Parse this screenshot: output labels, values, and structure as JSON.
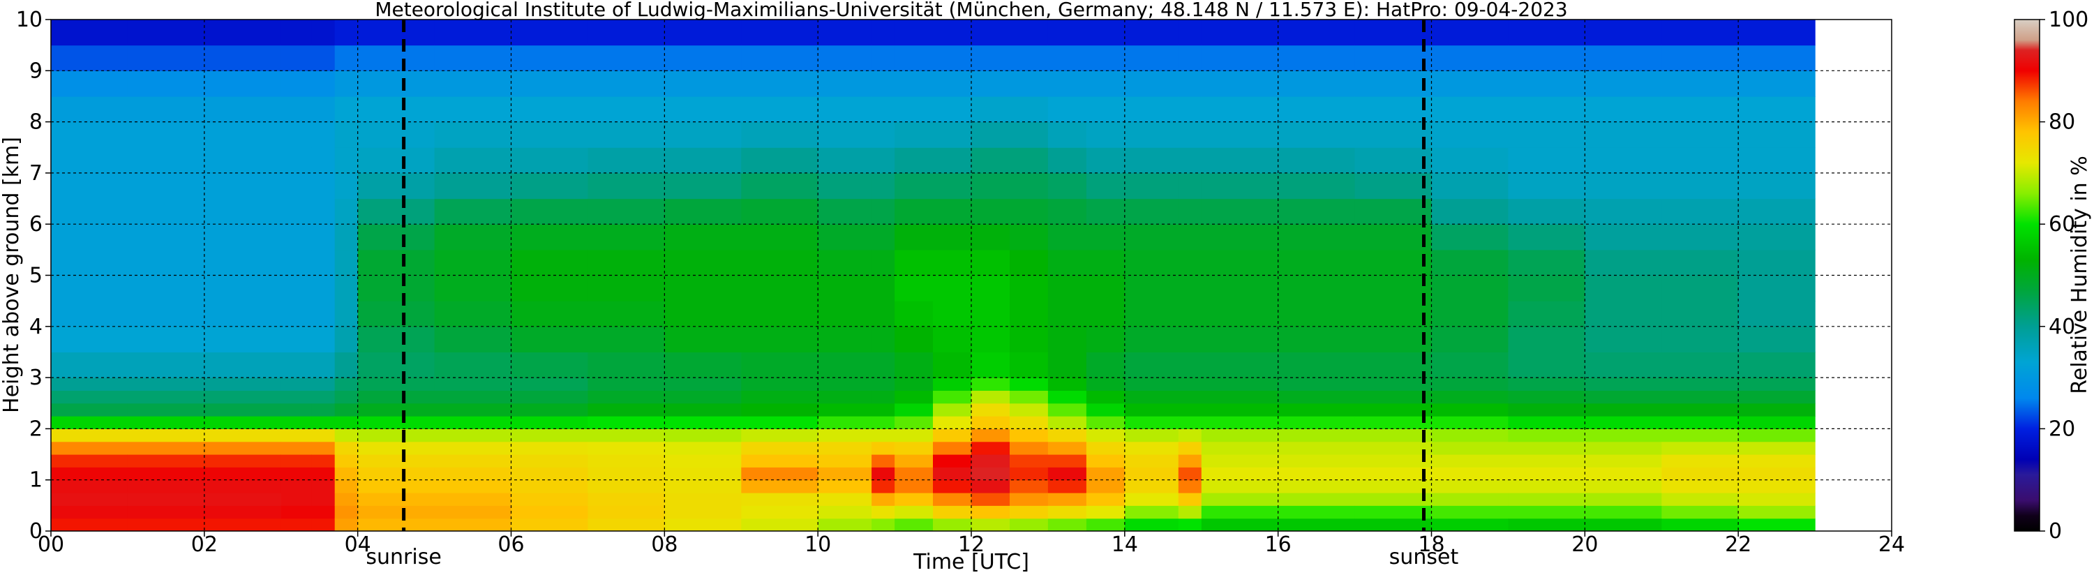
{
  "chart_data": {
    "type": "heatmap",
    "title": "Meteorological Institute of Ludwig-Maximilians-Universität (München, Germany; 48.148 N / 11.573 E):    HatPro: 09-04-2023",
    "xlabel": "Time [UTC]",
    "ylabel": "Height above ground [km]",
    "xlim": [
      0,
      24
    ],
    "ylim": [
      0,
      10
    ],
    "data_x_range": [
      0,
      23
    ],
    "x_ticks": [
      "00",
      "02",
      "04",
      "06",
      "08",
      "10",
      "12",
      "14",
      "16",
      "18",
      "20",
      "22",
      "24"
    ],
    "x_tick_values": [
      0,
      2,
      4,
      6,
      8,
      10,
      12,
      14,
      16,
      18,
      20,
      22,
      24
    ],
    "y_ticks": [
      "0",
      "1",
      "2",
      "3",
      "4",
      "5",
      "6",
      "7",
      "8",
      "9",
      "10"
    ],
    "y_tick_values": [
      0,
      1,
      2,
      3,
      4,
      5,
      6,
      7,
      8,
      9,
      10
    ],
    "grid": true,
    "events": [
      {
        "name": "sunrise",
        "x": 4.6
      },
      {
        "name": "sunset",
        "x": 17.9
      }
    ],
    "colorbar": {
      "label": "Relative Humidity in %",
      "range": [
        0,
        100
      ],
      "ticks": [
        "0",
        "20",
        "40",
        "60",
        "80",
        "100"
      ],
      "tick_values": [
        0,
        20,
        40,
        60,
        80,
        100
      ]
    },
    "time_hours": [
      0,
      1,
      2,
      3,
      3.4,
      3.7,
      4,
      5,
      6,
      7,
      8,
      9,
      10,
      10.7,
      11,
      11.5,
      12,
      12.5,
      13,
      13.5,
      14,
      14.7,
      15,
      16,
      17,
      18,
      19,
      20,
      21,
      22,
      23
    ],
    "heights_km": [
      0,
      0.25,
      0.5,
      0.75,
      1,
      1.25,
      1.5,
      1.75,
      2,
      2.25,
      2.5,
      2.75,
      3,
      3.5,
      4,
      4.5,
      5,
      5.5,
      6,
      6.5,
      7,
      7.5,
      8,
      8.5,
      9,
      9.5,
      10
    ],
    "profiles_rh": [
      [
        88,
        90,
        92,
        92,
        91,
        90,
        86,
        80,
        68,
        48,
        44,
        42,
        38,
        34,
        32,
        32,
        32,
        32,
        32,
        32,
        32,
        32,
        32,
        30,
        26,
        20,
        15
      ],
      [
        88,
        90,
        92,
        92,
        91,
        90,
        86,
        80,
        68,
        48,
        44,
        42,
        38,
        34,
        32,
        32,
        32,
        32,
        32,
        32,
        32,
        32,
        32,
        30,
        26,
        20,
        15
      ],
      [
        88,
        90,
        92,
        92,
        91,
        90,
        86,
        80,
        68,
        48,
        44,
        42,
        38,
        34,
        32,
        32,
        32,
        32,
        32,
        32,
        32,
        32,
        32,
        30,
        26,
        20,
        15
      ],
      [
        88,
        90,
        91,
        92,
        91,
        90,
        86,
        80,
        68,
        48,
        44,
        42,
        38,
        34,
        32,
        32,
        32,
        32,
        32,
        32,
        32,
        32,
        32,
        30,
        26,
        20,
        15
      ],
      [
        88,
        90,
        91,
        92,
        91,
        90,
        86,
        80,
        68,
        48,
        44,
        42,
        38,
        34,
        32,
        32,
        32,
        32,
        32,
        32,
        32,
        32,
        32,
        30,
        26,
        20,
        15
      ],
      [
        80,
        82,
        82,
        80,
        80,
        78,
        76,
        74,
        66,
        50,
        46,
        44,
        42,
        38,
        36,
        36,
        36,
        36,
        36,
        34,
        34,
        34,
        34,
        32,
        28,
        22,
        16
      ],
      [
        78,
        80,
        80,
        78,
        77,
        76,
        74,
        72,
        66,
        52,
        48,
        46,
        44,
        44,
        46,
        48,
        48,
        48,
        44,
        40,
        36,
        34,
        34,
        32,
        28,
        22,
        16
      ],
      [
        78,
        80,
        80,
        78,
        77,
        76,
        74,
        72,
        66,
        52,
        48,
        46,
        44,
        46,
        48,
        50,
        50,
        50,
        48,
        42,
        38,
        36,
        34,
        32,
        28,
        22,
        16
      ],
      [
        76,
        78,
        78,
        76,
        76,
        75,
        74,
        72,
        66,
        52,
        48,
        46,
        44,
        48,
        50,
        52,
        52,
        52,
        48,
        44,
        38,
        36,
        34,
        32,
        28,
        22,
        16
      ],
      [
        74,
        76,
        76,
        75,
        74,
        74,
        73,
        72,
        66,
        54,
        50,
        48,
        46,
        48,
        50,
        52,
        52,
        52,
        48,
        44,
        40,
        36,
        34,
        32,
        28,
        22,
        16
      ],
      [
        72,
        74,
        74,
        74,
        73,
        73,
        72,
        71,
        66,
        54,
        50,
        48,
        46,
        50,
        52,
        52,
        52,
        52,
        50,
        44,
        40,
        36,
        34,
        32,
        28,
        22,
        16
      ],
      [
        70,
        72,
        73,
        74,
        86,
        80,
        76,
        74,
        66,
        54,
        52,
        50,
        48,
        50,
        52,
        52,
        52,
        52,
        50,
        46,
        42,
        38,
        34,
        32,
        28,
        22,
        16
      ],
      [
        66,
        70,
        72,
        74,
        82,
        78,
        76,
        74,
        68,
        56,
        52,
        50,
        48,
        50,
        52,
        52,
        52,
        50,
        48,
        44,
        40,
        36,
        34,
        32,
        28,
        22,
        16
      ],
      [
        62,
        70,
        76,
        84,
        92,
        90,
        80,
        74,
        68,
        56,
        52,
        50,
        48,
        50,
        52,
        52,
        52,
        50,
        48,
        44,
        40,
        36,
        34,
        32,
        28,
        22,
        16
      ],
      [
        60,
        68,
        74,
        82,
        86,
        82,
        78,
        74,
        68,
        60,
        56,
        52,
        50,
        52,
        54,
        56,
        56,
        54,
        50,
        46,
        42,
        38,
        34,
        32,
        28,
        22,
        16
      ],
      [
        62,
        72,
        80,
        86,
        92,
        92,
        88,
        80,
        74,
        70,
        66,
        60,
        54,
        54,
        56,
        56,
        56,
        54,
        50,
        46,
        42,
        38,
        34,
        32,
        28,
        22,
        16
      ],
      [
        64,
        74,
        82,
        90,
        94,
        94,
        92,
        86,
        78,
        76,
        72,
        66,
        58,
        56,
        56,
        56,
        56,
        54,
        50,
        46,
        44,
        40,
        36,
        32,
        28,
        22,
        16
      ],
      [
        62,
        72,
        80,
        84,
        88,
        88,
        86,
        80,
        76,
        72,
        68,
        62,
        56,
        54,
        54,
        54,
        54,
        52,
        50,
        46,
        44,
        40,
        36,
        32,
        28,
        22,
        16
      ],
      [
        60,
        70,
        78,
        84,
        92,
        90,
        84,
        78,
        72,
        66,
        62,
        56,
        52,
        52,
        52,
        52,
        52,
        50,
        48,
        46,
        42,
        38,
        34,
        32,
        28,
        22,
        16
      ],
      [
        58,
        68,
        76,
        80,
        82,
        80,
        76,
        74,
        68,
        60,
        56,
        52,
        48,
        50,
        52,
        52,
        52,
        50,
        48,
        44,
        40,
        36,
        34,
        32,
        28,
        22,
        16
      ],
      [
        56,
        62,
        70,
        74,
        76,
        76,
        74,
        72,
        66,
        56,
        52,
        50,
        46,
        48,
        50,
        50,
        50,
        50,
        48,
        44,
        40,
        36,
        34,
        32,
        28,
        22,
        16
      ],
      [
        56,
        64,
        74,
        80,
        88,
        84,
        78,
        74,
        66,
        56,
        52,
        50,
        46,
        48,
        50,
        50,
        50,
        50,
        48,
        44,
        40,
        36,
        34,
        32,
        28,
        22,
        16
      ],
      [
        54,
        58,
        66,
        70,
        72,
        72,
        70,
        70,
        66,
        56,
        52,
        50,
        46,
        48,
        50,
        50,
        50,
        50,
        48,
        44,
        40,
        36,
        34,
        32,
        28,
        22,
        16
      ],
      [
        54,
        58,
        66,
        70,
        72,
        72,
        70,
        70,
        66,
        56,
        52,
        48,
        46,
        48,
        50,
        50,
        50,
        50,
        48,
        44,
        40,
        36,
        34,
        32,
        28,
        22,
        16
      ],
      [
        54,
        58,
        66,
        70,
        72,
        72,
        70,
        70,
        66,
        56,
        52,
        48,
        46,
        48,
        50,
        50,
        50,
        50,
        48,
        44,
        38,
        36,
        34,
        32,
        28,
        22,
        16
      ],
      [
        54,
        60,
        66,
        70,
        72,
        72,
        70,
        68,
        66,
        56,
        52,
        48,
        46,
        46,
        48,
        48,
        48,
        46,
        42,
        38,
        36,
        34,
        34,
        32,
        28,
        22,
        16
      ],
      [
        52,
        60,
        66,
        70,
        72,
        72,
        70,
        68,
        64,
        54,
        50,
        48,
        44,
        44,
        44,
        46,
        46,
        44,
        40,
        36,
        34,
        34,
        34,
        32,
        28,
        22,
        16
      ],
      [
        52,
        60,
        66,
        70,
        72,
        72,
        70,
        68,
        64,
        54,
        50,
        46,
        44,
        42,
        42,
        42,
        42,
        40,
        38,
        36,
        34,
        34,
        34,
        32,
        28,
        22,
        16
      ],
      [
        54,
        62,
        68,
        72,
        74,
        74,
        72,
        68,
        64,
        54,
        50,
        46,
        44,
        42,
        42,
        42,
        42,
        40,
        38,
        36,
        34,
        34,
        34,
        32,
        28,
        22,
        16
      ],
      [
        56,
        64,
        70,
        72,
        74,
        74,
        72,
        68,
        62,
        54,
        50,
        46,
        44,
        42,
        40,
        40,
        40,
        40,
        38,
        36,
        34,
        34,
        34,
        32,
        28,
        22,
        16
      ],
      [
        56,
        64,
        70,
        72,
        74,
        74,
        72,
        68,
        62,
        54,
        50,
        46,
        44,
        42,
        40,
        40,
        40,
        40,
        38,
        36,
        34,
        34,
        34,
        32,
        28,
        22,
        16
      ]
    ]
  }
}
